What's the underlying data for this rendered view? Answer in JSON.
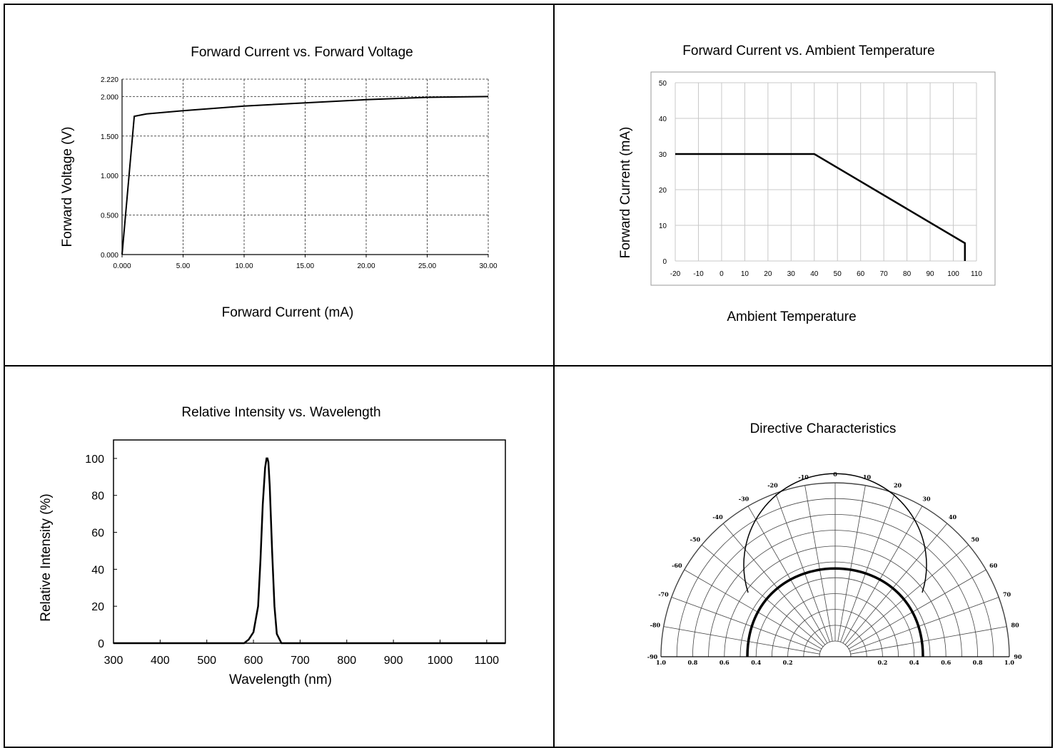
{
  "chart_data": [
    {
      "type": "line",
      "title": "Forward Current vs. Forward Voltage",
      "xlabel": "Forward Current (mA)",
      "ylabel": "Forward Voltage (V)",
      "xlim": [
        0,
        30
      ],
      "ylim": [
        0,
        2.22
      ],
      "grid": true,
      "x_ticks": [
        "0.000",
        "5.00",
        "10.00",
        "15.00",
        "20.00",
        "25.00",
        "30.00"
      ],
      "y_ticks": [
        "0.000",
        "0.500",
        "1.000",
        "1.500",
        "2.000",
        "2.220"
      ],
      "series": [
        {
          "x": [
            0,
            1,
            2,
            5,
            10,
            15,
            20,
            25,
            30
          ],
          "y": [
            0,
            1.75,
            1.78,
            1.82,
            1.88,
            1.92,
            1.96,
            1.99,
            2.0
          ]
        }
      ]
    },
    {
      "type": "line",
      "title": "Forward Current vs. Ambient Temperature",
      "xlabel": "Ambient Temperature",
      "ylabel": "Forward Current (mA)",
      "xlim": [
        -20,
        110
      ],
      "ylim": [
        0,
        50
      ],
      "grid": true,
      "x_ticks": [
        "-20",
        "-10",
        "0",
        "10",
        "20",
        "30",
        "40",
        "50",
        "60",
        "70",
        "80",
        "90",
        "100",
        "110"
      ],
      "y_ticks": [
        "0",
        "10",
        "20",
        "30",
        "40",
        "50"
      ],
      "series": [
        {
          "x": [
            -20,
            40,
            105,
            105
          ],
          "y": [
            30,
            30,
            5,
            0
          ]
        }
      ]
    },
    {
      "type": "line",
      "title": "Relative Intensity vs. Wavelength",
      "xlabel": "Wavelength (nm)",
      "ylabel": "Relative Intensity (%)",
      "xlim": [
        300,
        1140
      ],
      "ylim": [
        0,
        110
      ],
      "grid": false,
      "x_ticks": [
        "300",
        "400",
        "500",
        "600",
        "700",
        "800",
        "900",
        "1000",
        "1100"
      ],
      "y_ticks": [
        "0",
        "20",
        "40",
        "60",
        "80",
        "100"
      ],
      "series": [
        {
          "x": [
            300,
            580,
            590,
            600,
            610,
            615,
            620,
            625,
            628,
            630,
            632,
            635,
            640,
            645,
            650,
            660,
            700,
            1140
          ],
          "y": [
            0,
            0,
            2,
            6,
            20,
            45,
            75,
            95,
            100,
            100,
            98,
            85,
            50,
            20,
            5,
            0,
            0,
            0
          ]
        }
      ]
    },
    {
      "type": "polar",
      "title": "Directive Characteristics",
      "angle_labels": [
        "0",
        "10",
        "20",
        "30",
        "40",
        "50",
        "60",
        "70",
        "80",
        "90",
        "-10",
        "-20",
        "-30",
        "-40",
        "-50",
        "-60",
        "-70",
        "-80",
        "-90"
      ],
      "radial_labels_left": [
        "1.0",
        "0.8",
        "0.6",
        "0.4",
        "0.2"
      ],
      "radial_labels_right": [
        "0.2",
        "0.4",
        "0.6",
        "0.8",
        "1.0"
      ]
    }
  ]
}
